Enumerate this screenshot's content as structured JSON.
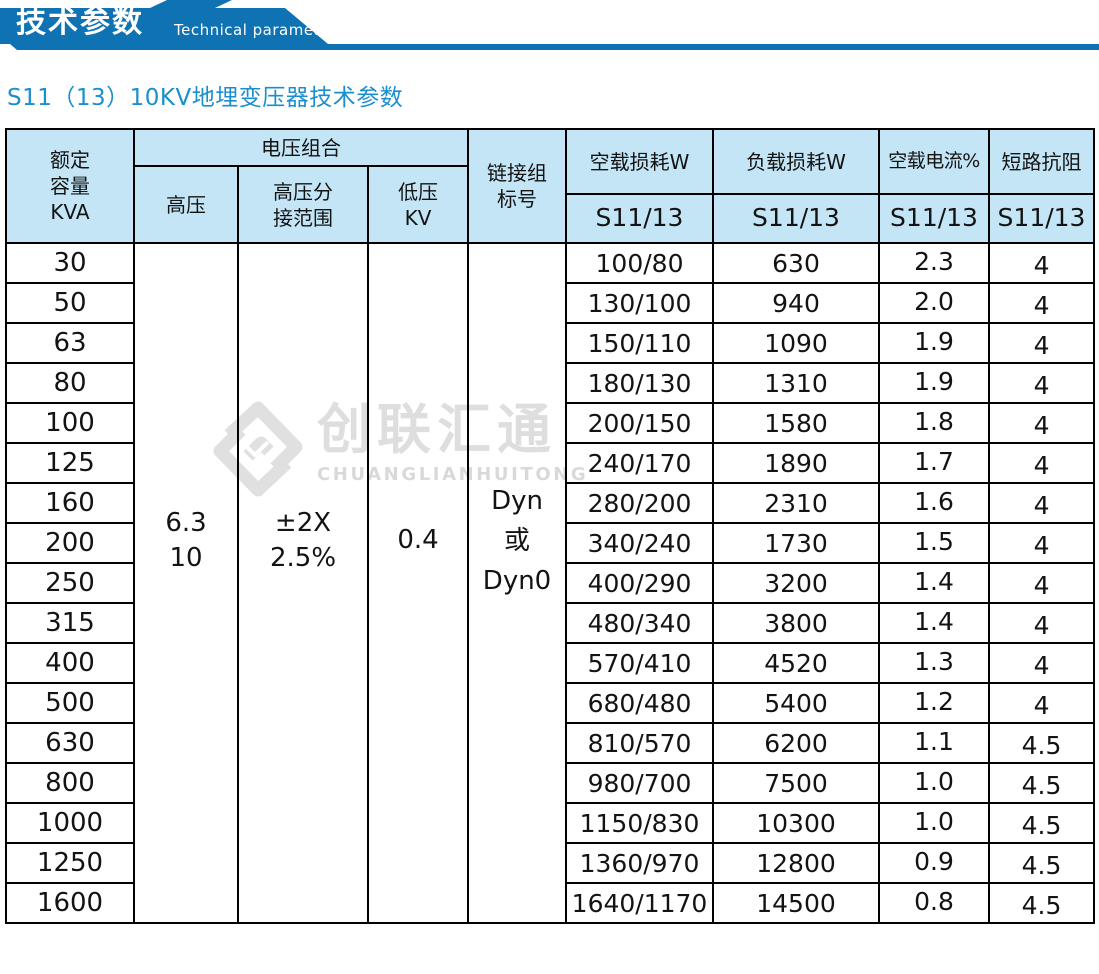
{
  "colors": {
    "banner_blue": "#0f72b2",
    "title_blue": "#1b8fce",
    "table_header_bg": "#c3e5f6",
    "border_black": "#000000",
    "watermark_gray": "#dedede"
  },
  "banner": {
    "title_cn": "技术参数",
    "title_en": "Technical parameter"
  },
  "page_title": "S11（13）10KV地埋变压器技术参数",
  "watermark": {
    "logo": "diamond-logo-icon",
    "brand_cn": "创联汇通",
    "brand_en": "CHUANGLIANHUITONG"
  },
  "table": {
    "headers": {
      "capacity": "额定\n容量\nKVA",
      "voltage_group": "电压组合",
      "hv": "高压",
      "tap_range": "高压分\n接范围",
      "lv": "低压\nKV",
      "vector_group": "链接组\n标号",
      "no_load_loss": "空载损耗W",
      "load_loss": "负载损耗W",
      "no_load_current": "空载电流%",
      "impedance": "短路抗阻",
      "series_label": "S11/13"
    },
    "merged": {
      "hv_value": "6.3\n10",
      "tap_value": "±2X\n2.5%",
      "lv_value": "0.4",
      "vector_value": "Dyn\n或\nDyn0"
    },
    "rows": [
      {
        "capacity": "30",
        "no_load": "100/80",
        "load": "630",
        "current": "2.3",
        "impedance": "4"
      },
      {
        "capacity": "50",
        "no_load": "130/100",
        "load": "940",
        "current": "2.0",
        "impedance": "4"
      },
      {
        "capacity": "63",
        "no_load": "150/110",
        "load": "1090",
        "current": "1.9",
        "impedance": "4"
      },
      {
        "capacity": "80",
        "no_load": "180/130",
        "load": "1310",
        "current": "1.9",
        "impedance": "4"
      },
      {
        "capacity": "100",
        "no_load": "200/150",
        "load": "1580",
        "current": "1.8",
        "impedance": "4"
      },
      {
        "capacity": "125",
        "no_load": "240/170",
        "load": "1890",
        "current": "1.7",
        "impedance": "4"
      },
      {
        "capacity": "160",
        "no_load": "280/200",
        "load": "2310",
        "current": "1.6",
        "impedance": "4"
      },
      {
        "capacity": "200",
        "no_load": "340/240",
        "load": "1730",
        "current": "1.5",
        "impedance": "4"
      },
      {
        "capacity": "250",
        "no_load": "400/290",
        "load": "3200",
        "current": "1.4",
        "impedance": "4"
      },
      {
        "capacity": "315",
        "no_load": "480/340",
        "load": "3800",
        "current": "1.4",
        "impedance": "4"
      },
      {
        "capacity": "400",
        "no_load": "570/410",
        "load": "4520",
        "current": "1.3",
        "impedance": "4"
      },
      {
        "capacity": "500",
        "no_load": "680/480",
        "load": "5400",
        "current": "1.2",
        "impedance": "4"
      },
      {
        "capacity": "630",
        "no_load": "810/570",
        "load": "6200",
        "current": "1.1",
        "impedance": "4.5"
      },
      {
        "capacity": "800",
        "no_load": "980/700",
        "load": "7500",
        "current": "1.0",
        "impedance": "4.5"
      },
      {
        "capacity": "1000",
        "no_load": "1150/830",
        "load": "10300",
        "current": "1.0",
        "impedance": "4.5"
      },
      {
        "capacity": "1250",
        "no_load": "1360/970",
        "load": "12800",
        "current": "0.9",
        "impedance": "4.5"
      },
      {
        "capacity": "1600",
        "no_load": "1640/1170",
        "load": "14500",
        "current": "0.8",
        "impedance": "4.5"
      }
    ]
  }
}
